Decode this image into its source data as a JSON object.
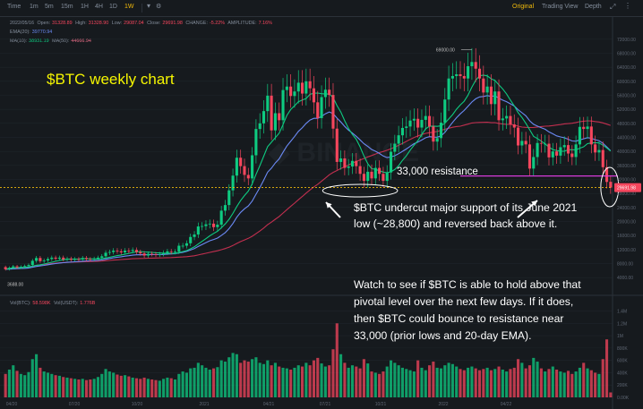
{
  "toolbar": {
    "intervals": [
      "Time",
      "1m",
      "5m",
      "15m",
      "1H",
      "4H",
      "1D",
      "1W"
    ],
    "active_interval": "1W",
    "views": [
      "Original",
      "Trading View",
      "Depth"
    ],
    "active_view": "Original"
  },
  "ohlc_info": {
    "date": "2022/05/16",
    "open_label": "Open:",
    "open": "31328.89",
    "high_label": "High:",
    "high": "31328.90",
    "low_label": "Low:",
    "low": "29087.04",
    "close_label": "Close:",
    "close": "29691.98",
    "change_label": "CHANGE:",
    "change": "-5.22%",
    "amplitude_label": "AMPLITUDE:",
    "amplitude": "7.16%"
  },
  "indicators": {
    "ema_label": "EMA(20):",
    "ema_value": "39770.94",
    "ma10_label": "MA(10):",
    "ma10_value": "38931.19",
    "ma50_label": "MA(50):",
    "ma50_value": "44666.94"
  },
  "volume_info": {
    "vol_btc_label": "Vol(BTC):",
    "vol_btc": "58.598K",
    "vol_usdt_label": "Vol(USDT):",
    "vol_usdt": "1.776B"
  },
  "colors": {
    "up": "#0ecb81",
    "down": "#f6465d",
    "ema20": "#6b8af5",
    "ma10": "#0ecb81",
    "ma50": "#c22f4f",
    "resistance": "#d63ad9",
    "price_line": "#f0b90b",
    "annotation_title": "#f5f500",
    "annotation_text": "#ffffff",
    "background": "#161a1e",
    "grid": "#1f252b"
  },
  "annotations": {
    "title": "$BTC weekly chart",
    "resistance_label": "33,000 resistance",
    "paragraph1_line1": "$BTC undercut major support of its June 2021",
    "paragraph1_line2": "low (~28,800) and reversed back above it.",
    "paragraph2_line1": "Watch to see if $BTC is able to hold above that",
    "paragraph2_line2": "pivotal level over the next few days. If it does,",
    "paragraph2_line3": "then $BTC could bounce to resistance near",
    "paragraph2_line4": "33,000 (prior lows and 20-day EMA)."
  },
  "chart_data": {
    "type": "candlestick",
    "price_axis_ticks": [
      72000,
      68000,
      64000,
      60000,
      56000,
      52000,
      48000,
      44000,
      40000,
      36000,
      32000,
      28000,
      24000,
      20000,
      16000,
      12000,
      8000,
      4000
    ],
    "price_axis_labels": [
      "72000.00",
      "68000.00",
      "64000.00",
      "60000.00",
      "56000.00",
      "52000.00",
      "48000.00",
      "44000.00",
      "40000.00",
      "36000.00",
      "32000.00",
      "28000.00",
      "24000.00",
      "20000.00",
      "16000.00",
      "12000.00",
      "8000.00",
      "4000.00"
    ],
    "ylim": [
      1500,
      74000
    ],
    "volume_axis_labels": [
      "1.4M",
      "1.2M",
      "1M",
      "800K",
      "600K",
      "400K",
      "200K",
      "0.00K"
    ],
    "volume_ticks": [
      1400,
      1200,
      1000,
      800,
      600,
      400,
      200,
      0
    ],
    "volume_ylim": [
      0,
      1480
    ],
    "x_labels": [
      "04/20",
      "07/20",
      "10/20",
      "2021",
      "04/21",
      "07/21",
      "10/21",
      "2022",
      "04/22"
    ],
    "all_time_high_label": "69000.00",
    "all_time_high": 69000,
    "low_marker_label": "3688.00",
    "low_marker": 3688,
    "current_price_label": "29691.98",
    "current_price": 29691.98,
    "resistance_level": 33000,
    "support_level": 28800,
    "series_names": [
      "EMA(20)",
      "MA(10)",
      "MA(50)"
    ],
    "closes": [
      6400,
      6800,
      7200,
      6900,
      7100,
      7300,
      7600,
      8800,
      9600,
      8700,
      8900,
      9300,
      9700,
      9400,
      9700,
      9200,
      9400,
      9100,
      9300,
      9200,
      9600,
      9300,
      9200,
      9400,
      9700,
      10100,
      11100,
      11300,
      11700,
      11500,
      11200,
      11700,
      11600,
      11900,
      11300,
      10900,
      10300,
      10800,
      10700,
      10500,
      10700,
      11100,
      11500,
      11300,
      11400,
      13100,
      13100,
      13800,
      15600,
      16300,
      18600,
      18700,
      19200,
      19400,
      18400,
      19100,
      23100,
      24700,
      28900,
      33100,
      38200,
      35800,
      33300,
      32300,
      38900,
      46400,
      48000,
      51500,
      55900,
      46000,
      50900,
      48900,
      57500,
      58500,
      55800,
      57100,
      59600,
      56500,
      60000,
      58000,
      54000,
      49500,
      55500,
      57600,
      56100,
      46500,
      37000,
      38000,
      35300,
      35700,
      37300,
      35800,
      33600,
      31600,
      34200,
      32300,
      35300,
      33600,
      31600,
      34000,
      39900,
      42200,
      44600,
      46700,
      47100,
      48800,
      49300,
      46800,
      49000,
      50100,
      47100,
      42800,
      43800,
      48200,
      54800,
      60800,
      61500,
      62000,
      61500,
      60800,
      64300,
      65500,
      63600,
      60800,
      56800,
      58500,
      53500,
      57100,
      48900,
      49400,
      50100,
      47700,
      46800,
      41700,
      43000,
      42000,
      35100,
      38400,
      42400,
      42200,
      42200,
      38300,
      40000,
      38800,
      41200,
      41800,
      39400,
      38400,
      42000,
      47000,
      46400,
      47100,
      42000,
      39700,
      40400,
      35500,
      31300,
      29692
    ],
    "opens": [
      7000,
      6400,
      6800,
      7200,
      6900,
      7100,
      7300,
      7600,
      8800,
      9600,
      8700,
      8900,
      9300,
      9700,
      9400,
      9700,
      9200,
      9400,
      9100,
      9300,
      9200,
      9600,
      9300,
      9200,
      9400,
      9700,
      10100,
      11100,
      11300,
      11700,
      11500,
      11200,
      11700,
      11600,
      11900,
      11300,
      10900,
      10300,
      10800,
      10700,
      10500,
      10700,
      11100,
      11500,
      11300,
      11400,
      13100,
      13100,
      13800,
      15600,
      16300,
      18600,
      18700,
      19200,
      19400,
      18400,
      19100,
      23100,
      24700,
      28900,
      33100,
      38200,
      35800,
      33300,
      32300,
      38900,
      46400,
      48000,
      51500,
      55900,
      46000,
      50900,
      48900,
      57500,
      58500,
      55800,
      57100,
      59600,
      56500,
      60000,
      58000,
      54000,
      49500,
      55500,
      57600,
      56100,
      46500,
      37000,
      38000,
      35300,
      35700,
      37300,
      35800,
      33600,
      31600,
      34200,
      32300,
      35300,
      33600,
      31600,
      34000,
      39900,
      42200,
      44600,
      46700,
      47100,
      48800,
      49300,
      46800,
      49000,
      50100,
      47100,
      42800,
      43800,
      48200,
      54800,
      60800,
      61500,
      62000,
      61500,
      60800,
      64300,
      65500,
      63600,
      60800,
      56800,
      58500,
      53500,
      57100,
      48900,
      49400,
      50100,
      47700,
      46800,
      41700,
      43000,
      42000,
      35100,
      38400,
      42400,
      42200,
      42200,
      38300,
      40000,
      38800,
      41200,
      41800,
      39400,
      38400,
      42000,
      47000,
      46400,
      47100,
      42000,
      39700,
      40400,
      35500,
      31329
    ],
    "volumes": [
      380,
      450,
      520,
      430,
      380,
      360,
      410,
      620,
      700,
      480,
      420,
      400,
      380,
      360,
      350,
      330,
      320,
      310,
      300,
      290,
      300,
      280,
      290,
      300,
      330,
      380,
      460,
      420,
      400,
      370,
      350,
      360,
      340,
      320,
      310,
      300,
      320,
      300,
      290,
      280,
      270,
      300,
      320,
      310,
      290,
      380,
      420,
      400,
      470,
      480,
      560,
      520,
      480,
      450,
      470,
      490,
      600,
      580,
      650,
      720,
      700,
      560,
      600,
      580,
      620,
      650,
      560,
      540,
      600,
      520,
      560,
      500,
      480,
      470,
      450,
      480,
      520,
      500,
      560,
      520,
      600,
      640,
      550,
      500,
      520,
      780,
      1200,
      700,
      560,
      480,
      520,
      500,
      470,
      620,
      550,
      420,
      400,
      380,
      420,
      500,
      600,
      560,
      520,
      480,
      460,
      440,
      420,
      600,
      480,
      440,
      520,
      580,
      480,
      470,
      520,
      560,
      540,
      500,
      460,
      440,
      480,
      500,
      470,
      440,
      460,
      480,
      440,
      460,
      500,
      450,
      420,
      460,
      480,
      620,
      560,
      470,
      520,
      640,
      580,
      470,
      420,
      460,
      500,
      450,
      420,
      400,
      430,
      380,
      420,
      480,
      560,
      470,
      440,
      400,
      380,
      620,
      940,
      80
    ]
  }
}
